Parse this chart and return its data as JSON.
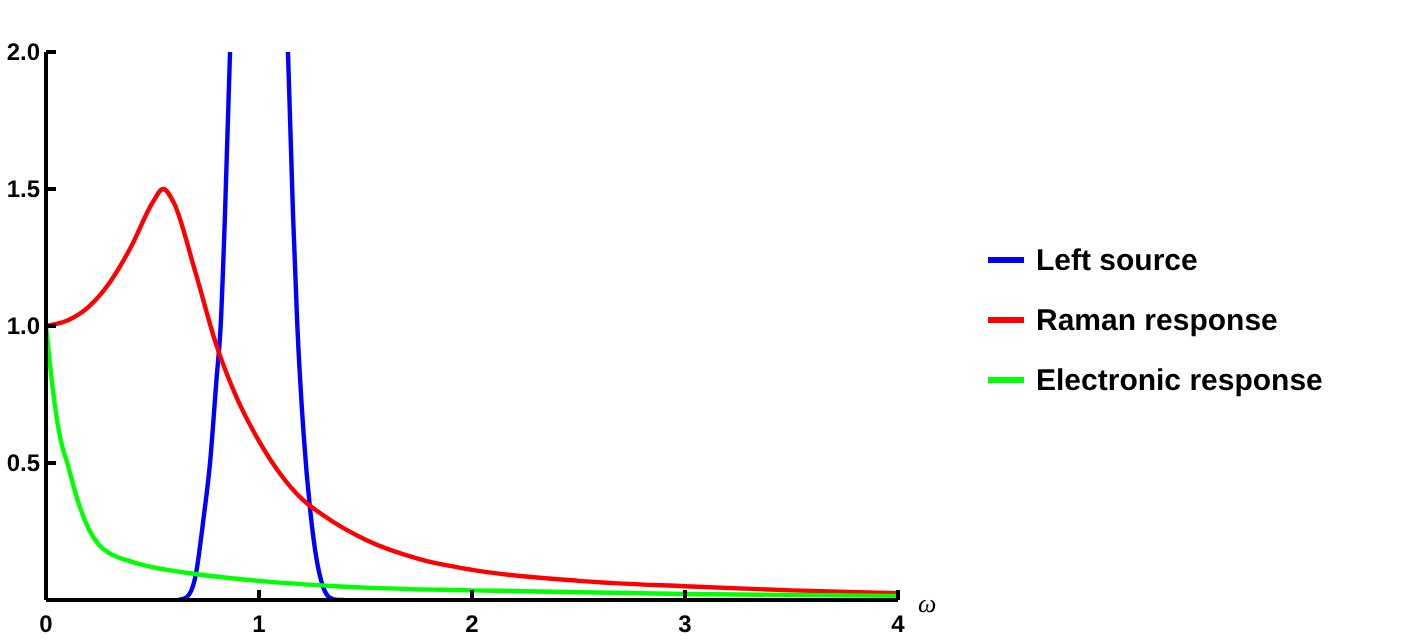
{
  "chart_data": {
    "type": "line",
    "xlabel": "ω",
    "xlim": [
      0,
      4
    ],
    "xticks": [
      0,
      1,
      2,
      3,
      4
    ],
    "ylim": [
      0,
      2
    ],
    "yticks": [
      0.5,
      {
        "value": 1,
        "label": "1.0"
      },
      1.5,
      {
        "value": 2,
        "label": "2.0"
      }
    ],
    "grid": false,
    "legend": "right",
    "marker": "none",
    "line_style": "solid",
    "series": [
      {
        "name": "Left source",
        "color": "#0000ff",
        "x": [
          0.62,
          0.66,
          0.7,
          0.74,
          0.77,
          0.8,
          0.82,
          0.84,
          0.864,
          1.0,
          1.136,
          1.16,
          1.18,
          1.21,
          1.24,
          1.27,
          1.3,
          1.33,
          1.37,
          1.4
        ],
        "values": [
          0,
          0.01,
          0.08,
          0.3,
          0.5,
          0.8,
          1.0,
          1.4,
          2.0,
          null,
          2.0,
          1.4,
          1.0,
          0.6,
          0.33,
          0.15,
          0.05,
          0.01,
          0,
          0
        ]
      },
      {
        "name": "Raman response",
        "color": "#ff0000",
        "x": [
          0,
          0.1,
          0.2,
          0.3,
          0.4,
          0.5,
          0.55,
          0.6,
          0.7,
          0.8,
          0.9,
          1.0,
          1.1,
          1.2,
          1.3,
          1.5,
          1.75,
          2.0,
          2.5,
          3.0,
          3.5,
          4.0
        ],
        "values": [
          1.0,
          1.02,
          1.07,
          1.16,
          1.29,
          1.45,
          1.5,
          1.45,
          1.2,
          0.93,
          0.73,
          0.58,
          0.46,
          0.37,
          0.31,
          0.22,
          0.15,
          0.11,
          0.07,
          0.05,
          0.035,
          0.025
        ]
      },
      {
        "name": "Electronic response",
        "color": "#00ff00",
        "x": [
          0,
          0.02,
          0.04,
          0.07,
          0.1,
          0.15,
          0.2,
          0.25,
          0.3,
          0.4,
          0.5,
          0.7,
          1.0,
          1.5,
          2.0,
          3.0,
          4.0
        ],
        "values": [
          1.0,
          0.85,
          0.72,
          0.58,
          0.5,
          0.36,
          0.26,
          0.2,
          0.17,
          0.14,
          0.12,
          0.095,
          0.07,
          0.045,
          0.035,
          0.022,
          0.015
        ]
      }
    ]
  }
}
